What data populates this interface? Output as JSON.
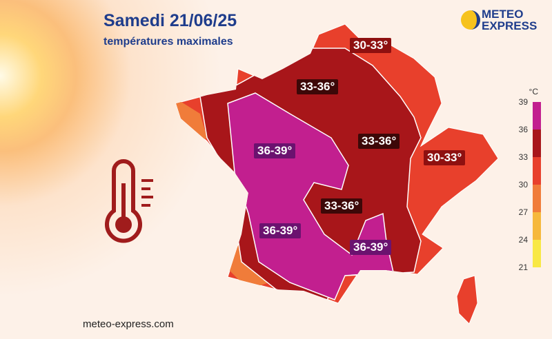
{
  "header": {
    "title": "Samedi 21/06/25",
    "subtitle": "températures maximales"
  },
  "logo": {
    "line1": "METEO",
    "line2": "EXPRESS"
  },
  "zones": [
    {
      "label": "30-33°"
    },
    {
      "label": "33-36°"
    },
    {
      "label": "33-36°"
    },
    {
      "label": "30-33°"
    },
    {
      "label": "36-39°"
    },
    {
      "label": "33-36°"
    },
    {
      "label": "36-39°"
    },
    {
      "label": "36-39°"
    }
  ],
  "legend": {
    "unit": "°C",
    "ticks": [
      39,
      36,
      33,
      30,
      27,
      24,
      21
    ],
    "colors": [
      "#c21f8f",
      "#a8161a",
      "#e8402c",
      "#f07c3a",
      "#f6b83c",
      "#f8e845"
    ]
  },
  "footer": "meteo-express.com"
}
